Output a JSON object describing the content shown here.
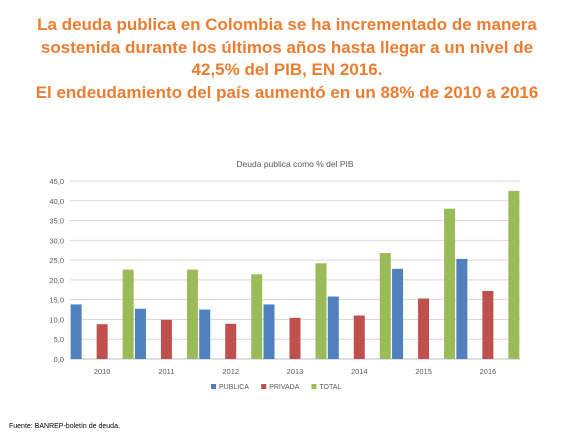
{
  "headline": {
    "line1": "La deuda publica en Colombia se ha incrementado de manera",
    "line2": "sostenida durante los últimos años hasta llegar a un nivel de",
    "line3": "42,5% del PIB, EN 2016.",
    "line4": "El endeudamiento del país aumentó en un 88% de 2010 a 2016"
  },
  "colors": {
    "headline": "#ec7c30",
    "publica": "#4f81bd",
    "privada": "#c0504d",
    "total": "#9bbb59",
    "grid": "#d9d9d9",
    "text": "#595959"
  },
  "chart_data": {
    "type": "bar",
    "title": "Deuda publica como % del PIB",
    "xlabel": "",
    "ylabel": "",
    "categories": [
      "2010",
      "2011",
      "2012",
      "2013",
      "2014",
      "2015",
      "2016"
    ],
    "series": [
      {
        "name": "PUBLICA",
        "values": [
          13.8,
          12.7,
          12.5,
          13.8,
          15.8,
          22.8,
          25.3
        ]
      },
      {
        "name": "PRIVADA",
        "values": [
          8.8,
          9.9,
          8.9,
          10.4,
          11.0,
          15.3,
          17.2
        ]
      },
      {
        "name": "TOTAL",
        "values": [
          22.6,
          22.6,
          21.4,
          24.2,
          26.8,
          38.0,
          42.5
        ]
      }
    ],
    "ylim": [
      0,
      45
    ],
    "yticks": [
      "0,0",
      "5,0",
      "10,0",
      "15,0",
      "20,0",
      "25,0",
      "30,0",
      "35,0",
      "40,0",
      "45,0"
    ],
    "grid": true,
    "legend": "bottom"
  },
  "source": "Fuente: BANREP-boletín de deuda."
}
